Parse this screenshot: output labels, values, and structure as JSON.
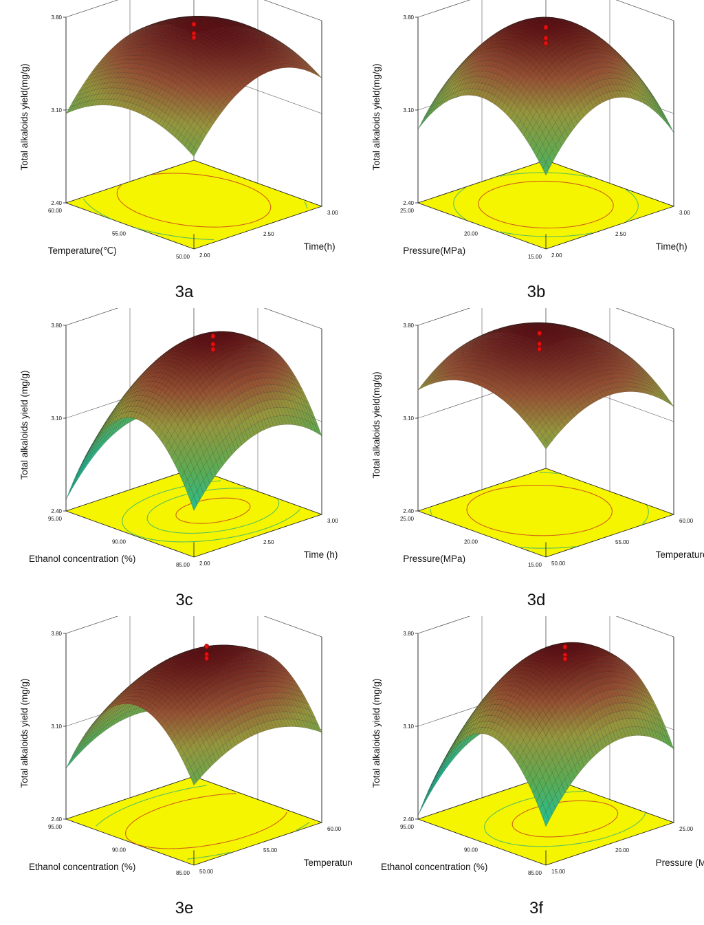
{
  "figure": {
    "caption_prefix": "3"
  },
  "chart_data": [
    {
      "type": "surface",
      "id": "3a",
      "caption": "3a",
      "zlabel": "Total alkaloids yield(mg/g)",
      "xlabel": "Temperature(℃)",
      "ylabel": "Time(h)",
      "x_ticks": [
        "60.00",
        "55.00",
        "50.00"
      ],
      "y_ticks": [
        "2.00",
        "2.50",
        "3.00"
      ],
      "z_ticks": [
        "2.40",
        "3.10",
        "3.80"
      ],
      "zlim": [
        2.4,
        3.8
      ],
      "surface": {
        "peak": 3.72,
        "x_curv": 0.35,
        "y_curv": 0.55,
        "x_opt": 0.55,
        "y_opt": 0.55,
        "tilt_x": -0.1,
        "tilt_y": 0.15
      },
      "contours": [
        3.35,
        3.55
      ],
      "design_points": [
        3.67,
        3.6,
        3.57
      ]
    },
    {
      "type": "surface",
      "id": "3b",
      "caption": "3b",
      "zlabel": "Total alkaloids yield(mg/g)",
      "xlabel": "Pressure(MPa)",
      "ylabel": "Time(h)",
      "x_ticks": [
        "25.00",
        "20.00",
        "15.00"
      ],
      "y_ticks": [
        "2.00",
        "2.50",
        "3.00"
      ],
      "z_ticks": [
        "2.40",
        "3.10",
        "3.80"
      ],
      "zlim": [
        2.4,
        3.8
      ],
      "surface": {
        "peak": 3.78,
        "x_curv": 0.75,
        "y_curv": 0.75,
        "x_opt": 0.5,
        "y_opt": 0.5,
        "tilt_x": 0.0,
        "tilt_y": 0.0
      },
      "contours": [
        3.35,
        3.55
      ],
      "design_points": [
        3.68,
        3.6,
        3.56
      ]
    },
    {
      "type": "surface",
      "id": "3c",
      "caption": "3c",
      "zlabel": "Total alkaloids yield (mg/g)",
      "xlabel": "Ethanol concentration (%)",
      "ylabel": "Time (h)",
      "x_ticks": [
        "95.00",
        "90.00",
        "85.00"
      ],
      "y_ticks": [
        "2.00",
        "2.50",
        "3.00"
      ],
      "z_ticks": [
        "2.40",
        "3.10",
        "3.80"
      ],
      "zlim": [
        2.4,
        3.8
      ],
      "surface": {
        "peak": 3.72,
        "x_curv": 1.2,
        "y_curv": 0.55,
        "x_opt": 0.45,
        "y_opt": 0.6,
        "tilt_x": 0.0,
        "tilt_y": 0.0
      },
      "contours": [
        3.3,
        3.5,
        3.65
      ],
      "design_points": [
        3.66,
        3.6,
        3.56
      ]
    },
    {
      "type": "surface",
      "id": "3d",
      "caption": "3d",
      "zlabel": "Total alkaloids yield(mg/g)",
      "xlabel": "Pressure(MPa)",
      "ylabel": "Temperature(℃)",
      "x_ticks": [
        "25.00",
        "20.00",
        "15.00"
      ],
      "y_ticks": [
        "50.00",
        "55.00",
        "60.00"
      ],
      "z_ticks": [
        "2.40",
        "3.10",
        "3.80"
      ],
      "zlim": [
        2.4,
        3.8
      ],
      "surface": {
        "peak": 3.76,
        "x_curv": 0.45,
        "y_curv": 0.45,
        "x_opt": 0.55,
        "y_opt": 0.5,
        "tilt_x": 0.0,
        "tilt_y": 0.0
      },
      "contours": [
        3.4,
        3.6
      ],
      "design_points": [
        3.68,
        3.6,
        3.56
      ]
    },
    {
      "type": "surface",
      "id": "3e",
      "caption": "3e",
      "zlabel": "Total alkaloids yield (mg/g)",
      "xlabel": "Ethanol concentration (%)",
      "ylabel": "Temperature (℃)",
      "x_ticks": [
        "95.00",
        "90.00",
        "85.00"
      ],
      "y_ticks": [
        "50.00",
        "55.00",
        "60.00"
      ],
      "z_ticks": [
        "2.40",
        "3.10",
        "3.80"
      ],
      "zlim": [
        2.4,
        3.8
      ],
      "surface": {
        "peak": 3.68,
        "x_curv": 1.0,
        "y_curv": 0.35,
        "x_opt": 0.45,
        "y_opt": 0.55,
        "tilt_x": 0.0,
        "tilt_y": 0.0
      },
      "contours": [
        3.2,
        3.45
      ],
      "design_points": [
        3.66,
        3.6,
        3.57
      ]
    },
    {
      "type": "surface",
      "id": "3f",
      "caption": "3f",
      "zlabel": "Total alkaloids yield (mg/g)",
      "xlabel": "Ethanol concentration (%)",
      "ylabel": "Pressure (MPa)",
      "x_ticks": [
        "95.00",
        "90.00",
        "85.00"
      ],
      "y_ticks": [
        "15.00",
        "20.00",
        "25.00"
      ],
      "z_ticks": [
        "2.40",
        "3.10",
        "3.80"
      ],
      "zlim": [
        2.4,
        3.8
      ],
      "surface": {
        "peak": 3.7,
        "x_curv": 1.2,
        "y_curv": 0.6,
        "x_opt": 0.45,
        "y_opt": 0.6,
        "tilt_x": 0.0,
        "tilt_y": 0.0
      },
      "contours": [
        3.35,
        3.55
      ],
      "design_points": [
        3.64,
        3.58,
        3.55
      ]
    }
  ]
}
